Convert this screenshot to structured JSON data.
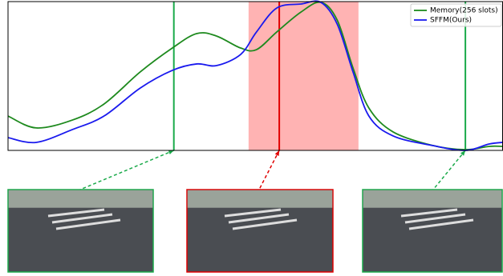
{
  "chart_data": {
    "type": "line",
    "x": [
      0,
      0.057,
      0.13,
      0.194,
      0.267,
      0.332,
      0.381,
      0.421,
      0.47,
      0.502,
      0.543,
      0.592,
      0.632,
      0.665,
      0.697,
      0.729,
      0.778,
      0.859,
      0.924,
      0.972,
      1
    ],
    "series": [
      {
        "name": "Memory(256 slots)",
        "color": "#1e8a1e",
        "values": [
          0.231,
          0.151,
          0.204,
          0.312,
          0.527,
          0.688,
          0.785,
          0.769,
          0.688,
          0.677,
          0.796,
          0.93,
          0.995,
          0.876,
          0.554,
          0.285,
          0.124,
          0.032,
          0.005,
          0.027,
          0.027
        ]
      },
      {
        "name": "SFFM(Ours)",
        "color": "#1a1aee",
        "values": [
          0.086,
          0.054,
          0.14,
          0.231,
          0.419,
          0.538,
          0.581,
          0.57,
          0.645,
          0.796,
          0.957,
          0.984,
          0.995,
          0.849,
          0.527,
          0.231,
          0.097,
          0.032,
          0,
          0.043,
          0.054
        ]
      }
    ],
    "xlim": [
      0,
      1
    ],
    "ylim": [
      0,
      1
    ],
    "highlight": {
      "x0": 0.486,
      "x1": 0.708,
      "color": "#ffb3b3"
    },
    "frame_markers": [
      {
        "x": 0.335,
        "color": "#1aaa4a"
      },
      {
        "x": 0.548,
        "color": "#e00000"
      },
      {
        "x": 0.924,
        "color": "#1aaa4a"
      }
    ],
    "legend": "upper right"
  }
}
